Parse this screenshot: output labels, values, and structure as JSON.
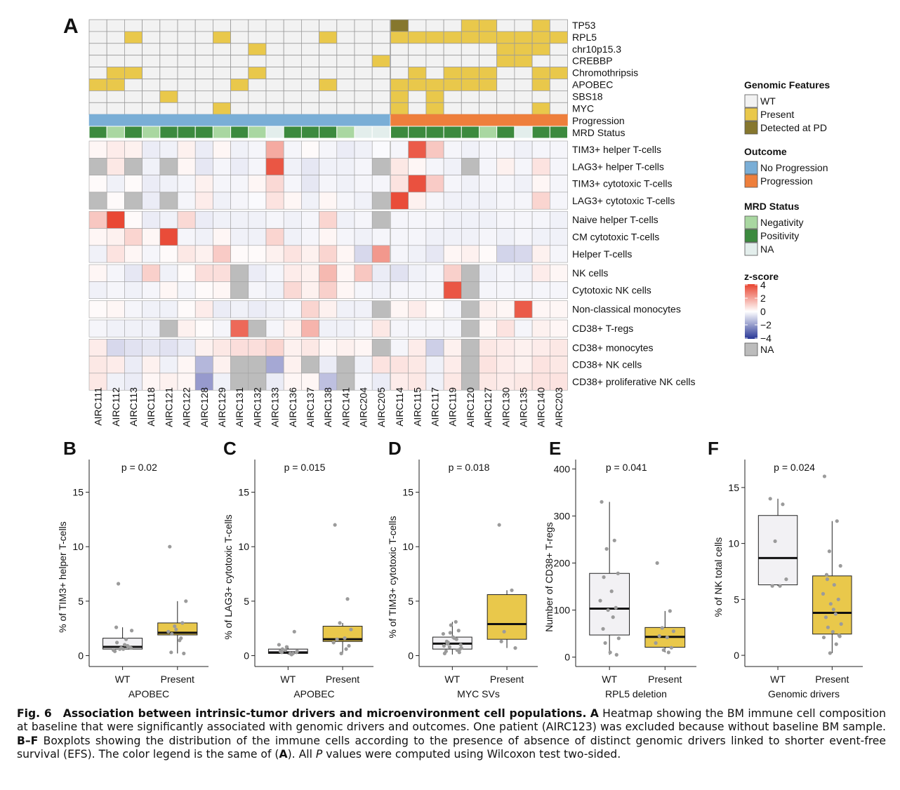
{
  "panels": {
    "A": "A",
    "B": "B",
    "C": "C",
    "D": "D",
    "E": "E",
    "F": "F"
  },
  "heatmap": {
    "samples_left": [
      "AIRC111",
      "AIRC112",
      "AIRC113",
      "AIRC118",
      "AIRC121",
      "AIRC122",
      "AIRC128",
      "AIRC129",
      "AIRC131",
      "AIRC132",
      "AIRC133",
      "AIRC136",
      "AIRC137",
      "AIRC138",
      "AIRC141",
      "AIRC204",
      "AIRC205"
    ],
    "samples_right": [
      "AIRC114",
      "AIRC115",
      "AIRC117",
      "AIRC119",
      "AIRC120",
      "AIRC127",
      "AIRC130",
      "AIRC135",
      "AIRC140",
      "AIRC203"
    ],
    "genomic_rows": [
      "TP53",
      "RPL5",
      "chr10p15.3",
      "CREBBP",
      "Chromothripsis",
      "APOBEC",
      "SBS18",
      "MYC"
    ],
    "genomic_left": [
      "00000000000000000",
      "00100001000001000",
      "00000000010000000",
      "00000000000000001",
      "01100000010000000",
      "11000000100001000",
      "00001000000000000",
      "00000001000000000"
    ],
    "genomic_right": [
      "2000110010",
      "1111111111",
      "0000001110",
      "0000001100",
      "0101110011",
      "1111110010",
      "1010000000",
      "1010000010"
    ],
    "outcome_row": "Progression",
    "mrd_row": "MRD Status",
    "mrd_left": "PNPNPPPNPNAPPPNAA",
    "mrd_right": "PPPPPNPAPP",
    "immune_blocks": [
      [
        "TIM3+ helper T-cells",
        "LAG3+ helper T-cells",
        "TIM3+ cytotoxic T-cells",
        "LAG3+ cytotoxic T-cells"
      ],
      [
        "Naive helper T-cells",
        "CM cytotoxic T-cells",
        "Helper T-cells"
      ],
      [
        "NK cells",
        "Cytotoxic NK cells"
      ],
      [
        "Non-classical monocytes"
      ],
      [
        "CD38+ T-regs"
      ],
      [
        "CD38+ monocytes",
        "CD38+ NK cells",
        "CD38+ proliferative NK cells"
      ]
    ],
    "z_left": [
      [
        0.2,
        0.4,
        0.3,
        -0.4,
        -0.3,
        0.3,
        -0.4,
        0.2,
        -0.3,
        -0.2,
        1.8,
        -0.2,
        0.1,
        -0.2,
        -0.4,
        -0.3,
        -0.1
      ],
      [
        "NA",
        0.5,
        "NA",
        -0.3,
        "NA",
        0.2,
        -0.5,
        -0.2,
        -0.4,
        -0.2,
        3.6,
        -0.3,
        -0.5,
        -0.3,
        -0.3,
        -0.2,
        "NA"
      ],
      [
        0.1,
        -0.3,
        0.1,
        -0.4,
        -0.3,
        -0.2,
        0.3,
        -0.2,
        -0.2,
        0.2,
        0.8,
        -0.2,
        -0.5,
        -0.2,
        -0.3,
        -0.2,
        -0.2
      ],
      [
        "NA",
        0.1,
        "NA",
        -0.4,
        "NA",
        -0.2,
        0.4,
        -0.3,
        -0.2,
        -0.1,
        0.6,
        0.2,
        -0.3,
        0.2,
        -0.2,
        -0.3,
        "NA"
      ],
      [
        1.2,
        3.9,
        0.1,
        -0.4,
        -0.3,
        0.8,
        -0.4,
        -0.3,
        -0.3,
        -0.3,
        -0.2,
        -0.3,
        -0.2,
        0.9,
        -0.3,
        -0.2,
        "NA"
      ],
      [
        0.2,
        0.3,
        0.9,
        0.2,
        3.8,
        -0.2,
        -0.3,
        0.2,
        -0.3,
        -0.3,
        0.9,
        -0.3,
        -0.2,
        0.2,
        -0.2,
        -0.3,
        -0.2
      ],
      [
        -0.3,
        0.6,
        0.2,
        -0.2,
        0.1,
        0.5,
        0.3,
        1.1,
        0.1,
        0.1,
        0.3,
        0.6,
        0.3,
        0.9,
        0.2,
        -0.8,
        2.2
      ],
      [
        0.2,
        -0.2,
        -0.5,
        1.0,
        -0.3,
        0.1,
        0.7,
        0.7,
        "NA",
        -0.4,
        -0.2,
        0.4,
        0.3,
        1.5,
        0.2,
        1.2,
        -0.4
      ],
      [
        -0.3,
        -0.2,
        -0.3,
        -0.2,
        0.2,
        -0.2,
        0.1,
        0.2,
        "NA",
        -0.2,
        -0.3,
        0.8,
        0.3,
        1.0,
        0.2,
        -0.2,
        -0.3
      ],
      [
        0.1,
        0.2,
        -0.2,
        -0.3,
        -0.3,
        0.1,
        0.4,
        -0.4,
        -0.3,
        -0.4,
        -0.3,
        -0.2,
        0.9,
        0.3,
        -0.3,
        -0.3,
        "NA"
      ],
      [
        -0.2,
        -0.3,
        -0.3,
        -0.3,
        "NA",
        0.3,
        0.1,
        -0.2,
        3.2,
        "NA",
        -0.2,
        0.3,
        1.6,
        -0.3,
        -0.3,
        -0.2,
        0.5
      ],
      [
        0.4,
        -0.8,
        -0.6,
        -0.5,
        -0.6,
        -0.4,
        0.3,
        0.5,
        0.7,
        0.7,
        0.9,
        0.3,
        0.5,
        0.2,
        0.3,
        0.2,
        "NA"
      ],
      [
        0.5,
        0.4,
        -0.4,
        0.3,
        -0.3,
        0.2,
        -1.5,
        0.3,
        "NA",
        "NA",
        -1.8,
        0.3,
        "NA",
        -0.4,
        "NA",
        -0.3,
        0.6
      ],
      [
        0.5,
        -0.3,
        -0.4,
        0.2,
        0.3,
        0.2,
        -2.1,
        -0.3,
        "NA",
        "NA",
        -0.4,
        0.2,
        0.2,
        -1.3,
        "NA",
        -0.2,
        -0.4
      ]
    ],
    "z_right": [
      [
        -0.2,
        3.5,
        1.2,
        -0.2,
        -0.3,
        -0.2,
        -0.2,
        -0.3,
        -0.2,
        -0.2
      ],
      [
        0.5,
        0.2,
        -0.2,
        -0.3,
        "NA",
        -0.2,
        0.3,
        -0.2,
        0.6,
        -0.2
      ],
      [
        0.6,
        3.7,
        1.1,
        -0.2,
        -0.3,
        -0.2,
        -0.2,
        -0.3,
        0.2,
        -0.2
      ],
      [
        3.8,
        0.3,
        -0.2,
        -0.3,
        -0.3,
        -0.3,
        -0.2,
        -0.2,
        0.9,
        -0.2
      ],
      [
        -0.2,
        -0.2,
        -0.2,
        -0.3,
        -0.3,
        -0.3,
        -0.2,
        -0.2,
        -0.2,
        -0.3
      ],
      [
        -0.2,
        -0.2,
        -0.3,
        -0.3,
        -0.3,
        -0.2,
        -0.3,
        -0.2,
        -0.3,
        -0.3
      ],
      [
        -0.2,
        -0.3,
        -0.5,
        0.2,
        0.3,
        0.1,
        -0.9,
        -0.8,
        0.3,
        -0.2
      ],
      [
        -0.6,
        -0.3,
        -0.2,
        1.0,
        "NA",
        -0.3,
        -0.2,
        -0.3,
        0.4,
        0.2
      ],
      [
        -0.2,
        -0.2,
        -0.2,
        3.6,
        "NA",
        -0.2,
        -0.2,
        -0.2,
        -0.2,
        -0.2
      ],
      [
        0.2,
        0.4,
        0.1,
        -0.2,
        "NA",
        0.3,
        0.2,
        3.5,
        0.2,
        0.2
      ],
      [
        -0.2,
        -0.2,
        -0.2,
        -0.2,
        "NA",
        0.2,
        0.6,
        -0.2,
        0.3,
        0.2
      ],
      [
        -0.2,
        0.4,
        -1.0,
        0.3,
        "NA",
        0.5,
        0.4,
        0.3,
        0.4,
        0.5
      ],
      [
        0.6,
        0.5,
        -0.3,
        0.4,
        "NA",
        0.6,
        0.4,
        0.3,
        0.6,
        0.5
      ],
      [
        0.4,
        0.5,
        -0.3,
        0.5,
        "NA",
        0.5,
        0.4,
        0.5,
        0.6,
        0.6
      ]
    ]
  },
  "legend": {
    "genomic_title": "Genomic Features",
    "genomic_items": [
      {
        "label": "WT",
        "color": "#f2f2f2"
      },
      {
        "label": "Present",
        "color": "#e9c84b"
      },
      {
        "label": "Detected at PD",
        "color": "#86772e"
      }
    ],
    "outcome_title": "Outcome",
    "outcome_items": [
      {
        "label": "No Progression",
        "color": "#7aaed6"
      },
      {
        "label": "Progression",
        "color": "#ee7f3c"
      }
    ],
    "mrd_title": "MRD Status",
    "mrd_items": [
      {
        "label": "Negativity",
        "color": "#a9d7a1"
      },
      {
        "label": "Positivity",
        "color": "#3c8a3e"
      },
      {
        "label": "NA",
        "color": "#e3eeec"
      }
    ],
    "zscore_title": "z-score",
    "zscore_ticks": [
      "4",
      "2",
      "0",
      "−2",
      "−4"
    ],
    "zscore_na": "NA",
    "na_color": "#bcbcbc"
  },
  "colors": {
    "wt": "#f2f2f2",
    "present": "#e9c84b",
    "detected_pd": "#86772e",
    "no_prog": "#7aaed6",
    "prog": "#ee7f3c",
    "mrd_neg": "#a9d7a1",
    "mrd_pos": "#3c8a3e",
    "mrd_na": "#e3eeec",
    "box_wt": "#f2f1f4",
    "box_present": "#e9c84b"
  },
  "chart_data": [
    {
      "type": "box",
      "panel": "B",
      "pvalue": "p = 0.02",
      "ylabel": "% of TIM3+ helper T-cells",
      "xlabel": "APOBEC",
      "categories": [
        "WT",
        "Present"
      ],
      "ylim": [
        -1,
        18
      ],
      "yticks": [
        0,
        5,
        10,
        15
      ],
      "boxes": [
        {
          "q1": 0.6,
          "median": 0.8,
          "q3": 1.6,
          "whisker_low": 0.5,
          "whisker_high": 2.6
        },
        {
          "q1": 1.9,
          "median": 2.1,
          "q3": 3.0,
          "whisker_low": 0.2,
          "whisker_high": 5.0
        }
      ],
      "points": [
        [
          0.4,
          0.9,
          0.6,
          0.7,
          1.2,
          1.0,
          0.5,
          0.8,
          0.7,
          1.5,
          2.6,
          2.3,
          6.6,
          0.6
        ],
        [
          10.0,
          3.0,
          2.7,
          5.0,
          2.0,
          1.4,
          2.2,
          0.2,
          2.4,
          1.6,
          0.3
        ]
      ]
    },
    {
      "type": "box",
      "panel": "C",
      "pvalue": "p = 0.015",
      "ylabel": "% of LAG3+ cytotoxic T-cells",
      "xlabel": "APOBEC",
      "categories": [
        "WT",
        "Present"
      ],
      "ylim": [
        -1,
        18
      ],
      "yticks": [
        0,
        5,
        10,
        15
      ],
      "boxes": [
        {
          "q1": 0.2,
          "median": 0.3,
          "q3": 0.6,
          "whisker_low": 0.1,
          "whisker_high": 0.9
        },
        {
          "q1": 1.3,
          "median": 1.5,
          "q3": 2.7,
          "whisker_low": 0.1,
          "whisker_high": 3.0
        }
      ],
      "points": [
        [
          0.4,
          0.2,
          0.5,
          0.3,
          0.6,
          0.2,
          1.0,
          2.2,
          0.8,
          0.1,
          0.3,
          0.4
        ],
        [
          12.0,
          5.2,
          3.0,
          2.4,
          1.5,
          1.6,
          1.2,
          0.9,
          0.2,
          0.6
        ]
      ]
    },
    {
      "type": "box",
      "panel": "D",
      "pvalue": "p = 0.018",
      "ylabel": "% of TIM3+ cytotoxic T-cells",
      "xlabel": "MYC SVs",
      "categories": [
        "WT",
        "Present"
      ],
      "ylim": [
        -1,
        18
      ],
      "yticks": [
        0,
        5,
        10,
        15
      ],
      "boxes": [
        {
          "q1": 0.6,
          "median": 1.1,
          "q3": 1.7,
          "whisker_low": 0.1,
          "whisker_high": 3.1
        },
        {
          "q1": 1.5,
          "median": 2.9,
          "q3": 5.6,
          "whisker_low": 0.7,
          "whisker_high": 6.0
        }
      ],
      "points": [
        [
          0.2,
          0.5,
          0.8,
          1.0,
          1.3,
          1.6,
          2.0,
          2.3,
          2.8,
          3.1,
          0.4,
          0.7,
          1.2,
          1.7,
          0.3,
          0.9,
          1.5,
          2.1,
          0.6,
          1.1
        ],
        [
          12.0,
          6.0,
          2.2,
          0.7,
          1.3
        ]
      ]
    },
    {
      "type": "box",
      "panel": "E",
      "pvalue": "p = 0.041",
      "ylabel": "Number of CD38+ T-regs",
      "xlabel": "RPL5 deletion",
      "categories": [
        "WT",
        "Present"
      ],
      "ylim": [
        -20,
        420
      ],
      "yticks": [
        0,
        100,
        200,
        300,
        400
      ],
      "boxes": [
        {
          "q1": 47,
          "median": 103,
          "q3": 178,
          "whisker_low": 5,
          "whisker_high": 330
        },
        {
          "q1": 21,
          "median": 43,
          "q3": 63,
          "whisker_low": 10,
          "whisker_high": 98
        }
      ],
      "points": [
        [
          330,
          248,
          230,
          178,
          170,
          140,
          120,
          105,
          100,
          85,
          60,
          40,
          30,
          10,
          5
        ],
        [
          200,
          98,
          62,
          55,
          45,
          42,
          30,
          20,
          15,
          10
        ]
      ]
    },
    {
      "type": "box",
      "panel": "F",
      "pvalue": "p = 0.024",
      "ylabel": "% of NK total cells",
      "xlabel": "Genomic drivers",
      "categories": [
        "WT",
        "Present"
      ],
      "ylim": [
        -1,
        17.5
      ],
      "yticks": [
        0,
        5,
        10,
        15
      ],
      "boxes": [
        {
          "q1": 6.3,
          "median": 8.7,
          "q3": 12.5,
          "whisker_low": 6.2,
          "whisker_high": 14.0
        },
        {
          "q1": 1.9,
          "median": 3.8,
          "q3": 7.1,
          "whisker_low": 0.2,
          "whisker_high": 12.0
        }
      ],
      "points": [
        [
          14.0,
          13.5,
          10.2,
          6.8,
          6.2,
          6.2
        ],
        [
          16.0,
          12.0,
          9.3,
          8.0,
          7.2,
          6.3,
          5.5,
          5.0,
          4.6,
          3.7,
          3.4,
          2.8,
          2.5,
          2.1,
          1.8,
          1.6,
          1.0,
          0.2,
          1.7,
          6.8,
          4.1
        ]
      ]
    }
  ],
  "caption": {
    "fig_label": "Fig. 6",
    "title": "Association between intrinsic-tumor drivers and microenvironment cell populations.",
    "a_label": "A",
    "a_text": "Heatmap showing the BM immune cell composition at baseline that were significantly associated with genomic drivers and outcomes. One patient (AIRC123) was excluded because without baseline BM sample.",
    "bf_label": "B–F",
    "bf_text": "Boxplots showing the distribution of the immune cells according to the presence of absence of distinct genomic drivers linked to shorter event-free survival (EFS). The color legend is the same of (",
    "ref": "A",
    "tail_a": "). All ",
    "p_sym": "P",
    "tail_b": " values were computed using Wilcoxon test two-sided."
  }
}
